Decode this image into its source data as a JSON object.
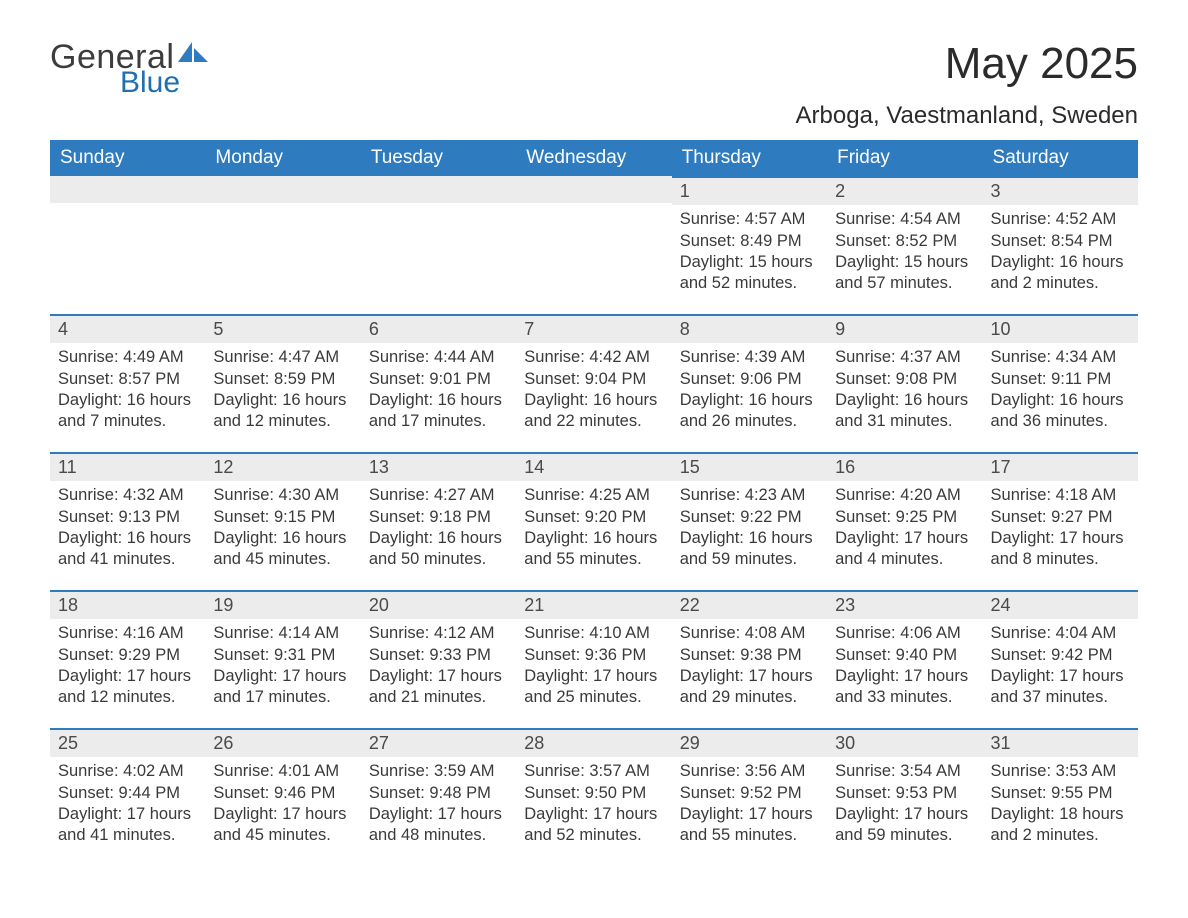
{
  "brand": {
    "part1": "General",
    "part2": "Blue",
    "accent_color": "#1f6fb2"
  },
  "title": "May 2025",
  "location": "Arboga, Vaestmanland, Sweden",
  "header_bg": "#2f7bbf",
  "header_fg": "#ffffff",
  "daynum_bg": "#ececec",
  "text_color": "#3a3a3a",
  "border_color": "#2f7bbf",
  "columns": [
    "Sunday",
    "Monday",
    "Tuesday",
    "Wednesday",
    "Thursday",
    "Friday",
    "Saturday"
  ],
  "weeks": [
    [
      null,
      null,
      null,
      null,
      {
        "n": "1",
        "sr": "Sunrise: 4:57 AM",
        "ss": "Sunset: 8:49 PM",
        "dl": "Daylight: 15 hours and 52 minutes."
      },
      {
        "n": "2",
        "sr": "Sunrise: 4:54 AM",
        "ss": "Sunset: 8:52 PM",
        "dl": "Daylight: 15 hours and 57 minutes."
      },
      {
        "n": "3",
        "sr": "Sunrise: 4:52 AM",
        "ss": "Sunset: 8:54 PM",
        "dl": "Daylight: 16 hours and 2 minutes."
      }
    ],
    [
      {
        "n": "4",
        "sr": "Sunrise: 4:49 AM",
        "ss": "Sunset: 8:57 PM",
        "dl": "Daylight: 16 hours and 7 minutes."
      },
      {
        "n": "5",
        "sr": "Sunrise: 4:47 AM",
        "ss": "Sunset: 8:59 PM",
        "dl": "Daylight: 16 hours and 12 minutes."
      },
      {
        "n": "6",
        "sr": "Sunrise: 4:44 AM",
        "ss": "Sunset: 9:01 PM",
        "dl": "Daylight: 16 hours and 17 minutes."
      },
      {
        "n": "7",
        "sr": "Sunrise: 4:42 AM",
        "ss": "Sunset: 9:04 PM",
        "dl": "Daylight: 16 hours and 22 minutes."
      },
      {
        "n": "8",
        "sr": "Sunrise: 4:39 AM",
        "ss": "Sunset: 9:06 PM",
        "dl": "Daylight: 16 hours and 26 minutes."
      },
      {
        "n": "9",
        "sr": "Sunrise: 4:37 AM",
        "ss": "Sunset: 9:08 PM",
        "dl": "Daylight: 16 hours and 31 minutes."
      },
      {
        "n": "10",
        "sr": "Sunrise: 4:34 AM",
        "ss": "Sunset: 9:11 PM",
        "dl": "Daylight: 16 hours and 36 minutes."
      }
    ],
    [
      {
        "n": "11",
        "sr": "Sunrise: 4:32 AM",
        "ss": "Sunset: 9:13 PM",
        "dl": "Daylight: 16 hours and 41 minutes."
      },
      {
        "n": "12",
        "sr": "Sunrise: 4:30 AM",
        "ss": "Sunset: 9:15 PM",
        "dl": "Daylight: 16 hours and 45 minutes."
      },
      {
        "n": "13",
        "sr": "Sunrise: 4:27 AM",
        "ss": "Sunset: 9:18 PM",
        "dl": "Daylight: 16 hours and 50 minutes."
      },
      {
        "n": "14",
        "sr": "Sunrise: 4:25 AM",
        "ss": "Sunset: 9:20 PM",
        "dl": "Daylight: 16 hours and 55 minutes."
      },
      {
        "n": "15",
        "sr": "Sunrise: 4:23 AM",
        "ss": "Sunset: 9:22 PM",
        "dl": "Daylight: 16 hours and 59 minutes."
      },
      {
        "n": "16",
        "sr": "Sunrise: 4:20 AM",
        "ss": "Sunset: 9:25 PM",
        "dl": "Daylight: 17 hours and 4 minutes."
      },
      {
        "n": "17",
        "sr": "Sunrise: 4:18 AM",
        "ss": "Sunset: 9:27 PM",
        "dl": "Daylight: 17 hours and 8 minutes."
      }
    ],
    [
      {
        "n": "18",
        "sr": "Sunrise: 4:16 AM",
        "ss": "Sunset: 9:29 PM",
        "dl": "Daylight: 17 hours and 12 minutes."
      },
      {
        "n": "19",
        "sr": "Sunrise: 4:14 AM",
        "ss": "Sunset: 9:31 PM",
        "dl": "Daylight: 17 hours and 17 minutes."
      },
      {
        "n": "20",
        "sr": "Sunrise: 4:12 AM",
        "ss": "Sunset: 9:33 PM",
        "dl": "Daylight: 17 hours and 21 minutes."
      },
      {
        "n": "21",
        "sr": "Sunrise: 4:10 AM",
        "ss": "Sunset: 9:36 PM",
        "dl": "Daylight: 17 hours and 25 minutes."
      },
      {
        "n": "22",
        "sr": "Sunrise: 4:08 AM",
        "ss": "Sunset: 9:38 PM",
        "dl": "Daylight: 17 hours and 29 minutes."
      },
      {
        "n": "23",
        "sr": "Sunrise: 4:06 AM",
        "ss": "Sunset: 9:40 PM",
        "dl": "Daylight: 17 hours and 33 minutes."
      },
      {
        "n": "24",
        "sr": "Sunrise: 4:04 AM",
        "ss": "Sunset: 9:42 PM",
        "dl": "Daylight: 17 hours and 37 minutes."
      }
    ],
    [
      {
        "n": "25",
        "sr": "Sunrise: 4:02 AM",
        "ss": "Sunset: 9:44 PM",
        "dl": "Daylight: 17 hours and 41 minutes."
      },
      {
        "n": "26",
        "sr": "Sunrise: 4:01 AM",
        "ss": "Sunset: 9:46 PM",
        "dl": "Daylight: 17 hours and 45 minutes."
      },
      {
        "n": "27",
        "sr": "Sunrise: 3:59 AM",
        "ss": "Sunset: 9:48 PM",
        "dl": "Daylight: 17 hours and 48 minutes."
      },
      {
        "n": "28",
        "sr": "Sunrise: 3:57 AM",
        "ss": "Sunset: 9:50 PM",
        "dl": "Daylight: 17 hours and 52 minutes."
      },
      {
        "n": "29",
        "sr": "Sunrise: 3:56 AM",
        "ss": "Sunset: 9:52 PM",
        "dl": "Daylight: 17 hours and 55 minutes."
      },
      {
        "n": "30",
        "sr": "Sunrise: 3:54 AM",
        "ss": "Sunset: 9:53 PM",
        "dl": "Daylight: 17 hours and 59 minutes."
      },
      {
        "n": "31",
        "sr": "Sunrise: 3:53 AM",
        "ss": "Sunset: 9:55 PM",
        "dl": "Daylight: 18 hours and 2 minutes."
      }
    ]
  ]
}
